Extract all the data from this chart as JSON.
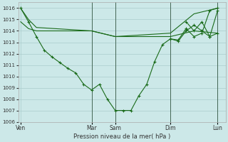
{
  "background_color": "#cce8e8",
  "grid_color": "#aacccc",
  "line_color": "#1a6b1a",
  "marker_color": "#1a6b1a",
  "xlabel_text": "Pression niveau de la mer( hPa )",
  "ylim": [
    1006,
    1016.5
  ],
  "yticks": [
    1006,
    1007,
    1008,
    1009,
    1010,
    1011,
    1012,
    1013,
    1014,
    1015,
    1016
  ],
  "x_day_labels": [
    "Ven",
    "Mar",
    "Sam",
    "Dim",
    "Lun"
  ],
  "x_day_positions": [
    0,
    9,
    12,
    19,
    25
  ],
  "vline_positions": [
    9,
    12,
    19,
    25
  ],
  "xlim": [
    -0.3,
    26
  ],
  "series1_x": [
    0,
    1,
    2,
    9,
    12,
    19,
    22,
    25
  ],
  "series1_y": [
    1016.0,
    1015.0,
    1014.3,
    1014.0,
    1013.5,
    1013.8,
    1015.5,
    1016.0
  ],
  "series2_x": [
    0,
    1,
    2,
    9,
    12,
    19,
    22,
    25
  ],
  "series2_y": [
    1014.8,
    1014.2,
    1014.0,
    1014.0,
    1013.5,
    1013.5,
    1014.0,
    1013.8
  ],
  "series3_x": [
    0,
    1,
    2,
    3,
    4,
    5,
    6,
    7,
    8,
    9,
    10,
    11,
    12,
    13,
    14,
    15,
    16,
    17,
    18,
    19,
    20,
    21,
    22,
    23,
    24,
    25
  ],
  "series3_y": [
    1016.0,
    1014.8,
    1013.5,
    1012.3,
    1011.7,
    1011.2,
    1010.7,
    1010.3,
    1009.3,
    1008.8,
    1009.3,
    1008.0,
    1007.0,
    1007.0,
    1007.0,
    1008.3,
    1009.3,
    1011.3,
    1012.8,
    1013.3,
    1013.2,
    1014.2,
    1013.5,
    1013.8,
    1015.8,
    1016.0
  ],
  "series4_x": [
    19,
    20,
    21,
    22,
    23,
    24,
    25
  ],
  "series4_y": [
    1013.3,
    1013.1,
    1014.0,
    1014.5,
    1014.0,
    1013.5,
    1013.8
  ],
  "series5_x": [
    21,
    22,
    23,
    24,
    25
  ],
  "series5_y": [
    1014.8,
    1014.0,
    1014.8,
    1013.5,
    1015.8
  ]
}
